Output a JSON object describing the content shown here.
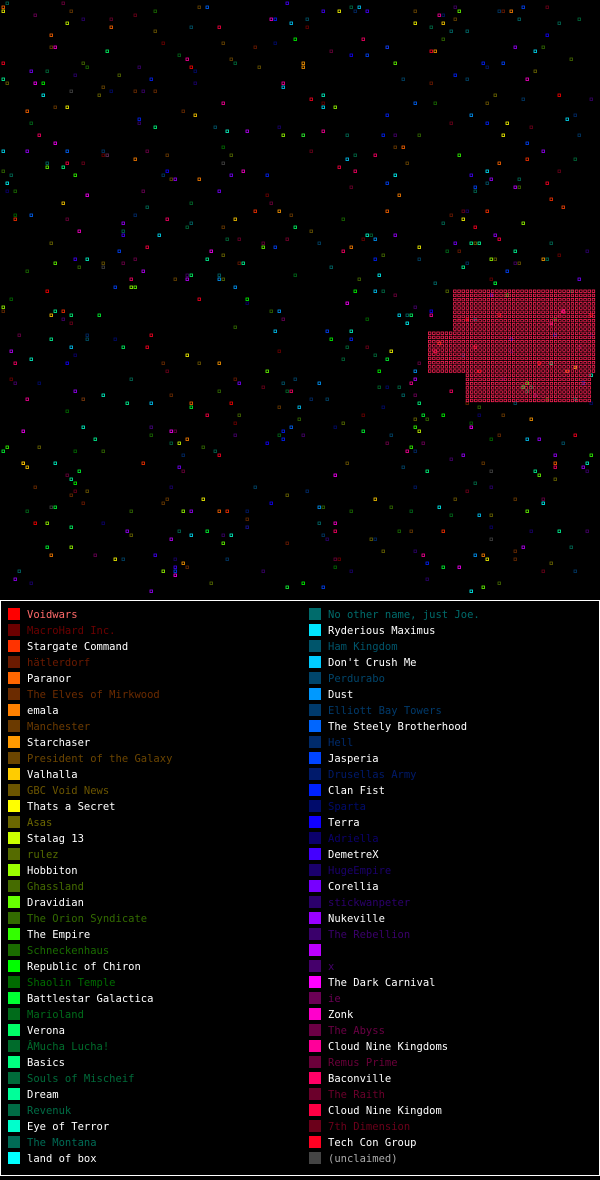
{
  "legend": {
    "columns": [
      [
        {
          "name": "Voidwars",
          "color": "#ff0000",
          "label_color": "#ff6a6a"
        },
        {
          "name": "MacroHard Inc.",
          "color": "#6b0000",
          "label_color": "#6b0000"
        },
        {
          "name": "Stargate Command",
          "color": "#ff3300",
          "label_color": "#ffffff"
        },
        {
          "name": "hätlerdorf",
          "color": "#6b1a00",
          "label_color": "#6b1a00"
        },
        {
          "name": "Paranor",
          "color": "#ff6600",
          "label_color": "#ffffff"
        },
        {
          "name": "The Elves of Mirkwood",
          "color": "#6b2b00",
          "label_color": "#6b2b00"
        },
        {
          "name": "emala",
          "color": "#ff8000",
          "label_color": "#ffffff"
        },
        {
          "name": "Manchester",
          "color": "#6b3a00",
          "label_color": "#6b3a00"
        },
        {
          "name": "Starchaser",
          "color": "#ff9900",
          "label_color": "#ffffff"
        },
        {
          "name": "President of the Galaxy",
          "color": "#6b4500",
          "label_color": "#6b4500"
        },
        {
          "name": "Valhalla",
          "color": "#ffcc00",
          "label_color": "#ffffff"
        },
        {
          "name": "GBC Void News",
          "color": "#6b5500",
          "label_color": "#6b5500"
        },
        {
          "name": "Thats a Secret",
          "color": "#ffff00",
          "label_color": "#ffffff"
        },
        {
          "name": "Asas",
          "color": "#6b6600",
          "label_color": "#6b6600"
        },
        {
          "name": "Stalag 13",
          "color": "#ccff00",
          "label_color": "#ffffff"
        },
        {
          "name": "rulez",
          "color": "#556b00",
          "label_color": "#556b00"
        },
        {
          "name": "Hobbiton",
          "color": "#99ff00",
          "label_color": "#ffffff"
        },
        {
          "name": "Ghassland",
          "color": "#456b00",
          "label_color": "#456b00"
        },
        {
          "name": "Dravidian",
          "color": "#66ff00",
          "label_color": "#ffffff"
        },
        {
          "name": "The Orion Syndicate",
          "color": "#336b00",
          "label_color": "#336b00"
        },
        {
          "name": "The Empire",
          "color": "#33ff00",
          "label_color": "#ffffff"
        },
        {
          "name": "Schneckenhaus",
          "color": "#1a6b00",
          "label_color": "#1a6b00"
        },
        {
          "name": "Republic of Chiron",
          "color": "#00ff00",
          "label_color": "#ffffff"
        },
        {
          "name": "Shaolin Temple",
          "color": "#006b00",
          "label_color": "#006b00"
        },
        {
          "name": "Battlestar Galactica",
          "color": "#00ff33",
          "label_color": "#ffffff"
        },
        {
          "name": "Marioland",
          "color": "#006b1a",
          "label_color": "#006b1a"
        },
        {
          "name": "Verona",
          "color": "#00ff66",
          "label_color": "#ffffff"
        },
        {
          "name": "ÂMucha Lucha!",
          "color": "#006b2b",
          "label_color": "#006b2b"
        },
        {
          "name": "Basics",
          "color": "#00ff80",
          "label_color": "#ffffff"
        },
        {
          "name": "Souls of Mischeif",
          "color": "#006b3a",
          "label_color": "#006b3a"
        },
        {
          "name": "Dream",
          "color": "#00ff99",
          "label_color": "#ffffff"
        },
        {
          "name": "Revenuk",
          "color": "#006b45",
          "label_color": "#006b45"
        },
        {
          "name": "Eye of Terror",
          "color": "#00ffcc",
          "label_color": "#ffffff"
        },
        {
          "name": "The Montana",
          "color": "#006b55",
          "label_color": "#006b55"
        },
        {
          "name": "land of box",
          "color": "#00ffff",
          "label_color": "#ffffff"
        }
      ],
      [
        {
          "name": "No other name, just Joe.",
          "color": "#006b6b",
          "label_color": "#006b6b"
        },
        {
          "name": "Ryderious Maximus",
          "color": "#00e5ff",
          "label_color": "#ffffff"
        },
        {
          "name": "Ham Kingdom",
          "color": "#00556b",
          "label_color": "#00556b"
        },
        {
          "name": "Don't Crush Me",
          "color": "#00ccff",
          "label_color": "#ffffff"
        },
        {
          "name": "Perdurabo",
          "color": "#00456b",
          "label_color": "#00456b"
        },
        {
          "name": "Dust",
          "color": "#0099ff",
          "label_color": "#ffffff"
        },
        {
          "name": "Elliott Bay Towers",
          "color": "#003a6b",
          "label_color": "#003a6b"
        },
        {
          "name": "The Steely Brotherhood",
          "color": "#0066ff",
          "label_color": "#ffffff"
        },
        {
          "name": "Hell",
          "color": "#002b6b",
          "label_color": "#002b6b"
        },
        {
          "name": "Jasperia",
          "color": "#0044ff",
          "label_color": "#ffffff"
        },
        {
          "name": "Drusellas Army",
          "color": "#001a6b",
          "label_color": "#001a6b"
        },
        {
          "name": "Clan Fist",
          "color": "#0022ff",
          "label_color": "#ffffff"
        },
        {
          "name": "Sparta",
          "color": "#000b6b",
          "label_color": "#000b6b"
        },
        {
          "name": "Terra",
          "color": "#1100ff",
          "label_color": "#ffffff"
        },
        {
          "name": "Adriella",
          "color": "#0b006b",
          "label_color": "#0b006b"
        },
        {
          "name": "DemetreX",
          "color": "#4400ff",
          "label_color": "#ffffff"
        },
        {
          "name": "HugeEmpire",
          "color": "#1a006b",
          "label_color": "#1a006b"
        },
        {
          "name": "Corellia",
          "color": "#7700ff",
          "label_color": "#ffffff"
        },
        {
          "name": "stickwanpeter",
          "color": "#2b006b",
          "label_color": "#2b006b"
        },
        {
          "name": "Nukeville",
          "color": "#9900ff",
          "label_color": "#ffffff"
        },
        {
          "name": "The Rebellion",
          "color": "#3a006b",
          "label_color": "#3a006b"
        },
        {
          "name": null,
          "color": "#bb00ff",
          "label_color": "#ffffff"
        },
        {
          "name": "x",
          "color": "#45006b",
          "label_color": "#45006b"
        },
        {
          "name": "The Dark Carnival",
          "color": "#ff00ff",
          "label_color": "#ffffff"
        },
        {
          "name": "ie",
          "color": "#6b0055",
          "label_color": "#6b0055"
        },
        {
          "name": "Zonk",
          "color": "#ff00cc",
          "label_color": "#ffffff"
        },
        {
          "name": "The Abyss",
          "color": "#6b0045",
          "label_color": "#6b0045"
        },
        {
          "name": "Cloud Nine Kingdoms",
          "color": "#ff0099",
          "label_color": "#ffffff"
        },
        {
          "name": "Remus Prime",
          "color": "#6b003a",
          "label_color": "#6b003a"
        },
        {
          "name": "Baconville",
          "color": "#ff0066",
          "label_color": "#ffffff"
        },
        {
          "name": "The Raith",
          "color": "#6b002b",
          "label_color": "#6b002b"
        },
        {
          "name": "Cloud Nine Kingdom",
          "color": "#ff0044",
          "label_color": "#ffffff"
        },
        {
          "name": "7th Dimension",
          "color": "#6b001a",
          "label_color": "#6b001a"
        },
        {
          "name": "Tech Con Group",
          "color": "#ff0022",
          "label_color": "#ffffff"
        },
        {
          "name": "(unclaimed)",
          "color": "#444444",
          "label_color": "#aaaaaa"
        }
      ]
    ]
  }
}
